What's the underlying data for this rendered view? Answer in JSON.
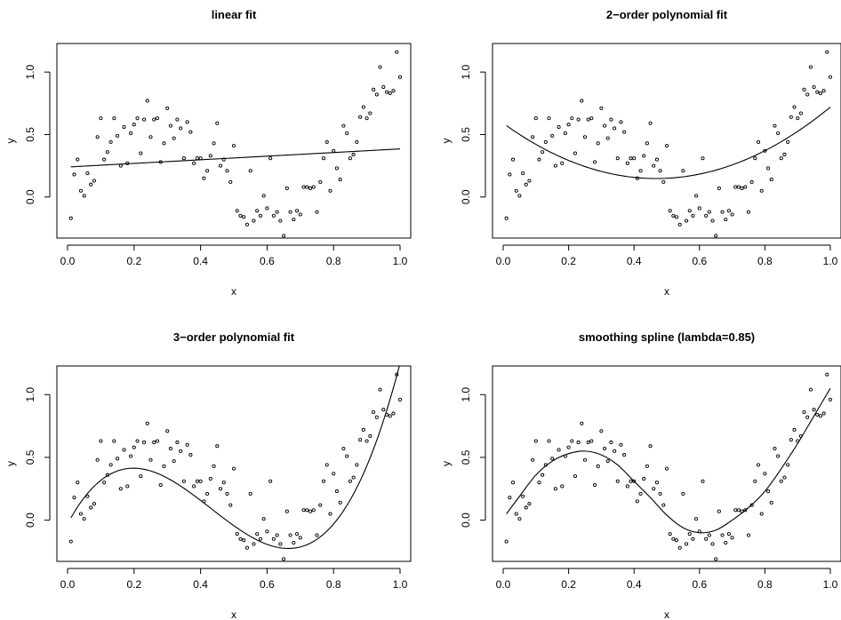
{
  "chart_data": [
    {
      "type": "scatter",
      "title": "linear fit",
      "xlabel": "x",
      "ylabel": "y",
      "xlim": [
        0.0,
        1.0
      ],
      "ylim": [
        -0.3,
        1.2
      ],
      "xticks": [
        "0.0",
        "0.2",
        "0.4",
        "0.6",
        "0.8",
        "1.0"
      ],
      "yticks": [
        "0.0",
        "0.5",
        "1.0"
      ],
      "points": [
        [
          0.01,
          -0.17
        ],
        [
          0.02,
          0.18
        ],
        [
          0.03,
          0.3
        ],
        [
          0.04,
          0.05
        ],
        [
          0.05,
          0.01
        ],
        [
          0.06,
          0.19
        ],
        [
          0.07,
          0.1
        ],
        [
          0.08,
          0.13
        ],
        [
          0.09,
          0.48
        ],
        [
          0.1,
          0.63
        ],
        [
          0.11,
          0.3
        ],
        [
          0.12,
          0.36
        ],
        [
          0.13,
          0.44
        ],
        [
          0.14,
          0.63
        ],
        [
          0.15,
          0.49
        ],
        [
          0.16,
          0.25
        ],
        [
          0.17,
          0.56
        ],
        [
          0.18,
          0.27
        ],
        [
          0.19,
          0.51
        ],
        [
          0.2,
          0.58
        ],
        [
          0.21,
          0.63
        ],
        [
          0.22,
          0.35
        ],
        [
          0.23,
          0.62
        ],
        [
          0.24,
          0.77
        ],
        [
          0.25,
          0.48
        ],
        [
          0.26,
          0.62
        ],
        [
          0.27,
          0.63
        ],
        [
          0.28,
          0.28
        ],
        [
          0.29,
          0.43
        ],
        [
          0.3,
          0.71
        ],
        [
          0.31,
          0.57
        ],
        [
          0.32,
          0.47
        ],
        [
          0.33,
          0.62
        ],
        [
          0.34,
          0.55
        ],
        [
          0.35,
          0.31
        ],
        [
          0.36,
          0.6
        ],
        [
          0.37,
          0.52
        ],
        [
          0.38,
          0.27
        ],
        [
          0.39,
          0.31
        ],
        [
          0.4,
          0.31
        ],
        [
          0.41,
          0.15
        ],
        [
          0.42,
          0.21
        ],
        [
          0.43,
          0.33
        ],
        [
          0.44,
          0.43
        ],
        [
          0.45,
          0.59
        ],
        [
          0.46,
          0.25
        ],
        [
          0.47,
          0.3
        ],
        [
          0.48,
          0.21
        ],
        [
          0.49,
          0.12
        ],
        [
          0.5,
          0.41
        ],
        [
          0.51,
          -0.11
        ],
        [
          0.52,
          -0.15
        ],
        [
          0.53,
          -0.16
        ],
        [
          0.54,
          -0.22
        ],
        [
          0.55,
          0.21
        ],
        [
          0.56,
          -0.19
        ],
        [
          0.57,
          -0.11
        ],
        [
          0.58,
          -0.15
        ],
        [
          0.59,
          0.01
        ],
        [
          0.6,
          -0.09
        ],
        [
          0.61,
          0.31
        ],
        [
          0.62,
          -0.15
        ],
        [
          0.63,
          -0.12
        ],
        [
          0.64,
          -0.19
        ],
        [
          0.65,
          -0.31
        ],
        [
          0.66,
          0.07
        ],
        [
          0.67,
          -0.12
        ],
        [
          0.68,
          -0.18
        ],
        [
          0.69,
          -0.11
        ],
        [
          0.7,
          -0.14
        ],
        [
          0.71,
          0.08
        ],
        [
          0.72,
          0.08
        ],
        [
          0.73,
          0.07
        ],
        [
          0.74,
          0.08
        ],
        [
          0.75,
          -0.12
        ],
        [
          0.76,
          0.12
        ],
        [
          0.77,
          0.31
        ],
        [
          0.78,
          0.44
        ],
        [
          0.79,
          0.05
        ],
        [
          0.8,
          0.37
        ],
        [
          0.81,
          0.23
        ],
        [
          0.82,
          0.14
        ],
        [
          0.83,
          0.57
        ],
        [
          0.84,
          0.51
        ],
        [
          0.85,
          0.31
        ],
        [
          0.86,
          0.34
        ],
        [
          0.87,
          0.44
        ],
        [
          0.88,
          0.64
        ],
        [
          0.89,
          0.72
        ],
        [
          0.9,
          0.63
        ],
        [
          0.91,
          0.67
        ],
        [
          0.92,
          0.86
        ],
        [
          0.93,
          0.82
        ],
        [
          0.94,
          1.04
        ],
        [
          0.95,
          0.88
        ],
        [
          0.96,
          0.84
        ],
        [
          0.97,
          0.83
        ],
        [
          0.98,
          0.85
        ],
        [
          0.99,
          1.16
        ],
        [
          1.0,
          0.96
        ]
      ],
      "fit": {
        "kind": "linear",
        "coef": [
          0.24,
          0.145
        ]
      }
    },
    {
      "type": "scatter",
      "title": "2−order polynomial fit",
      "xlabel": "x",
      "ylabel": "y",
      "xlim": [
        0.0,
        1.0
      ],
      "ylim": [
        -0.3,
        1.2
      ],
      "xticks": [
        "0.0",
        "0.2",
        "0.4",
        "0.6",
        "0.8",
        "1.0"
      ],
      "yticks": [
        "0.0",
        "0.5",
        "1.0"
      ],
      "points": "same as chart 1",
      "fit": {
        "kind": "poly2",
        "coef": [
          0.59,
          -1.89,
          2.02
        ]
      }
    },
    {
      "type": "scatter",
      "title": "3−order polynomial fit",
      "xlabel": "x",
      "ylabel": "y",
      "xlim": [
        0.0,
        1.0
      ],
      "ylim": [
        -0.3,
        1.2
      ],
      "xticks": [
        "0.0",
        "0.2",
        "0.4",
        "0.6",
        "0.8",
        "1.0"
      ],
      "yticks": [
        "0.0",
        "0.5",
        "1.0"
      ],
      "points": "same as chart 1",
      "fit": {
        "kind": "poly3",
        "coef": [
          -0.03,
          4.98,
          -16.33,
          12.63
        ]
      }
    },
    {
      "type": "scatter",
      "title": "smoothing spline (lambda=0.85)",
      "xlabel": "x",
      "ylabel": "y",
      "xlim": [
        0.0,
        1.0
      ],
      "ylim": [
        -0.3,
        1.2
      ],
      "xticks": [
        "0.0",
        "0.2",
        "0.4",
        "0.6",
        "0.8",
        "1.0"
      ],
      "yticks": [
        "0.0",
        "0.5",
        "1.0"
      ],
      "points": "same as chart 1",
      "fit": {
        "kind": "spline",
        "knots": [
          [
            0.01,
            0.05
          ],
          [
            0.05,
            0.19
          ],
          [
            0.1,
            0.36
          ],
          [
            0.15,
            0.47
          ],
          [
            0.2,
            0.53
          ],
          [
            0.25,
            0.55
          ],
          [
            0.3,
            0.52
          ],
          [
            0.35,
            0.44
          ],
          [
            0.4,
            0.31
          ],
          [
            0.45,
            0.18
          ],
          [
            0.5,
            0.04
          ],
          [
            0.55,
            -0.06
          ],
          [
            0.6,
            -0.1
          ],
          [
            0.65,
            -0.08
          ],
          [
            0.7,
            0.0
          ],
          [
            0.75,
            0.1
          ],
          [
            0.8,
            0.23
          ],
          [
            0.85,
            0.41
          ],
          [
            0.9,
            0.61
          ],
          [
            0.95,
            0.83
          ],
          [
            1.0,
            1.05
          ]
        ]
      }
    }
  ]
}
